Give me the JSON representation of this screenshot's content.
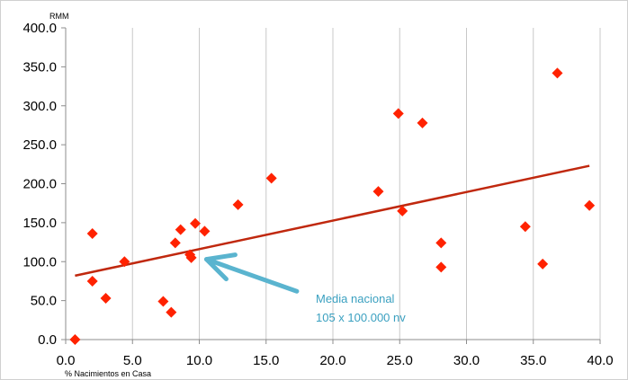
{
  "chart_data": {
    "type": "scatter",
    "title": "",
    "xlabel": "% Nacimientos en Casa",
    "ylabel": "RMM",
    "xlim": [
      0,
      40
    ],
    "ylim": [
      0,
      400
    ],
    "x_ticks": [
      "0.0",
      "5.0",
      "10.0",
      "15.0",
      "20.0",
      "25.0",
      "30.0",
      "35.0",
      "40.0"
    ],
    "y_ticks": [
      "0.0",
      "50.0",
      "100.0",
      "150.0",
      "200.0",
      "250.0",
      "300.0",
      "350.0",
      "400.0"
    ],
    "grid": "vertical",
    "series": [
      {
        "marker": "diamond",
        "color": "#ff2200",
        "points": [
          {
            "x": 0.7,
            "y": 0
          },
          {
            "x": 2.0,
            "y": 136
          },
          {
            "x": 2.0,
            "y": 75
          },
          {
            "x": 3.0,
            "y": 53
          },
          {
            "x": 4.4,
            "y": 100
          },
          {
            "x": 7.3,
            "y": 49
          },
          {
            "x": 7.9,
            "y": 35
          },
          {
            "x": 8.2,
            "y": 124
          },
          {
            "x": 8.6,
            "y": 141
          },
          {
            "x": 9.3,
            "y": 109
          },
          {
            "x": 9.4,
            "y": 105
          },
          {
            "x": 9.7,
            "y": 149
          },
          {
            "x": 10.4,
            "y": 139
          },
          {
            "x": 12.9,
            "y": 173
          },
          {
            "x": 15.4,
            "y": 207
          },
          {
            "x": 23.4,
            "y": 190
          },
          {
            "x": 24.9,
            "y": 290
          },
          {
            "x": 25.2,
            "y": 165
          },
          {
            "x": 26.7,
            "y": 278
          },
          {
            "x": 28.1,
            "y": 124
          },
          {
            "x": 28.1,
            "y": 93
          },
          {
            "x": 34.4,
            "y": 145
          },
          {
            "x": 35.7,
            "y": 97
          },
          {
            "x": 36.8,
            "y": 342
          },
          {
            "x": 39.2,
            "y": 172
          }
        ]
      }
    ],
    "trendline": {
      "type": "linear",
      "color": "#c0280e",
      "x": [
        0.7,
        39.2
      ],
      "y": [
        82,
        223
      ]
    },
    "annotation": {
      "lines": [
        "Media nacional",
        "105 x 100.000 nv"
      ],
      "color": "#3aa0c0",
      "arrow_color": "#5ab4cf",
      "target": {
        "x": 10.4,
        "y": 103
      }
    }
  }
}
